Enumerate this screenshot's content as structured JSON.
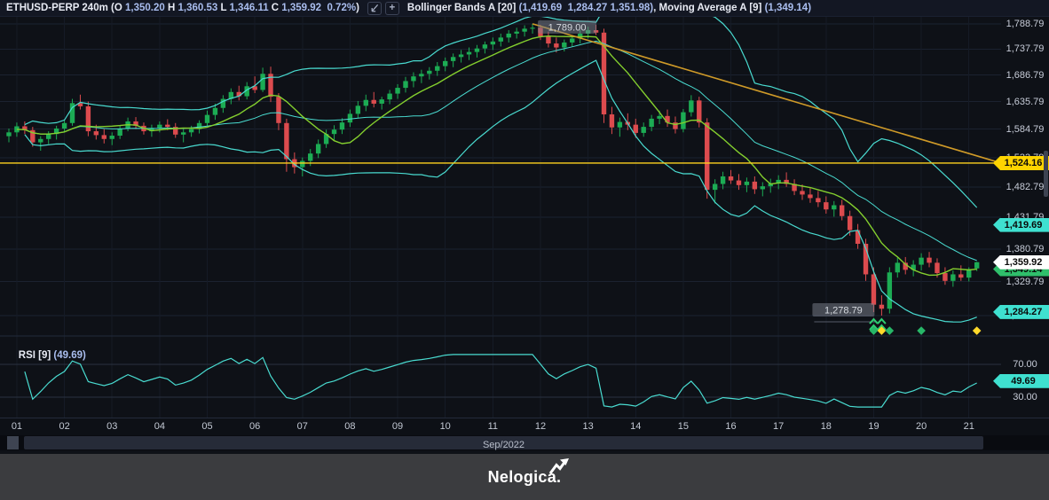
{
  "title_bar": {
    "segments_left": [
      {
        "text": "ETHUSD-PERP 240m ",
        "style": "label"
      },
      {
        "text": "(O ",
        "style": "label"
      },
      {
        "text": "1,350.20 ",
        "style": "value"
      },
      {
        "text": "H ",
        "style": "label"
      },
      {
        "text": "1,360.53 ",
        "style": "value"
      },
      {
        "text": "L ",
        "style": "label"
      },
      {
        "text": "1,346.11 ",
        "style": "value"
      },
      {
        "text": "C ",
        "style": "label"
      },
      {
        "text": "1,359.92  0.72%",
        "style": "value"
      },
      {
        "text": ")",
        "style": "label"
      }
    ],
    "segments_right": [
      {
        "text": "Bollinger Bands A [20] ",
        "style": "label"
      },
      {
        "text": "(1,419.69  1,284.27 1,351.98)",
        "style": "value"
      },
      {
        "text": ", ",
        "style": "label"
      },
      {
        "text": "Moving Average A [9] ",
        "style": "label"
      },
      {
        "text": "(1,349.14)",
        "style": "value"
      }
    ],
    "icons": {
      "scale_tool": "diagonal-arrow",
      "add_tool": "+"
    }
  },
  "price_axis": {
    "tick_labels": [
      "1,788.79",
      "1,737.79",
      "1,686.79",
      "1,635.79",
      "1,584.79",
      "1,533.79",
      "1,482.79",
      "1,431.79",
      "1,380.79",
      "1,329.79",
      "1,278.79"
    ],
    "tick_values": [
      1788.79,
      1737.79,
      1686.79,
      1635.79,
      1584.79,
      1533.79,
      1482.79,
      1431.79,
      1380.79,
      1329.79,
      1278.79
    ],
    "badges": [
      {
        "label": "1,524.16",
        "price": 1524.16,
        "bg": "#ffd400"
      },
      {
        "label": "1,419.69",
        "price": 1419.69,
        "bg": "#3fe0d0"
      },
      {
        "label": "1,349.14",
        "price": 1349.14,
        "bg": "#2fbf6b"
      },
      {
        "label": "1,359.92",
        "price": 1359.92,
        "bg": "#ffffff"
      },
      {
        "label": "1,284.27",
        "price": 1284.27,
        "bg": "#3fe0d0"
      }
    ]
  },
  "rsi": {
    "label": "RSI [9] ",
    "value_label": "(49.69)",
    "value": 49.69,
    "levels": [
      70,
      30
    ],
    "level_labels": [
      "70.00",
      "30.00"
    ],
    "badge": {
      "label": "49.69",
      "bg": "#3fe0d0"
    }
  },
  "time_axis": {
    "days": [
      "01",
      "02",
      "03",
      "04",
      "05",
      "06",
      "07",
      "08",
      "09",
      "10",
      "11",
      "12",
      "13",
      "14",
      "15",
      "16",
      "17",
      "18",
      "19",
      "20",
      "21"
    ],
    "period_label": "Sep/2022"
  },
  "footer": {
    "brand": "Nelogica."
  },
  "chart_data": {
    "type": "candlestick",
    "symbol": "ETHUSD-PERP",
    "timeframe": "240m",
    "month_label": "Sep/2022",
    "candles_per_day": 6,
    "scale": "logarithmic",
    "ylim": [
      1260,
      1800
    ],
    "grid": true,
    "candles": [
      [
        1572,
        1586,
        1561,
        1579
      ],
      [
        1579,
        1597,
        1571,
        1590
      ],
      [
        1590,
        1599,
        1576,
        1583
      ],
      [
        1583,
        1589,
        1553,
        1561
      ],
      [
        1561,
        1572,
        1546,
        1567
      ],
      [
        1567,
        1581,
        1558,
        1576
      ],
      [
        1576,
        1591,
        1566,
        1586
      ],
      [
        1586,
        1602,
        1579,
        1596
      ],
      [
        1596,
        1641,
        1591,
        1633
      ],
      [
        1633,
        1649,
        1621,
        1627
      ],
      [
        1627,
        1636,
        1572,
        1581
      ],
      [
        1581,
        1593,
        1566,
        1574
      ],
      [
        1574,
        1585,
        1559,
        1567
      ],
      [
        1567,
        1579,
        1556,
        1573
      ],
      [
        1573,
        1591,
        1567,
        1586
      ],
      [
        1586,
        1606,
        1581,
        1599
      ],
      [
        1599,
        1607,
        1585,
        1591
      ],
      [
        1591,
        1597,
        1575,
        1581
      ],
      [
        1581,
        1593,
        1571,
        1587
      ],
      [
        1587,
        1599,
        1579,
        1593
      ],
      [
        1593,
        1603,
        1583,
        1589
      ],
      [
        1589,
        1596,
        1569,
        1575
      ],
      [
        1575,
        1585,
        1561,
        1579
      ],
      [
        1579,
        1591,
        1571,
        1585
      ],
      [
        1585,
        1601,
        1577,
        1596
      ],
      [
        1596,
        1619,
        1591,
        1611
      ],
      [
        1611,
        1632,
        1602,
        1624
      ],
      [
        1624,
        1648,
        1615,
        1641
      ],
      [
        1641,
        1661,
        1631,
        1654
      ],
      [
        1654,
        1666,
        1638,
        1646
      ],
      [
        1646,
        1673,
        1640,
        1665
      ],
      [
        1665,
        1684,
        1652,
        1658
      ],
      [
        1658,
        1701,
        1654,
        1689
      ],
      [
        1689,
        1703,
        1635,
        1645
      ],
      [
        1645,
        1652,
        1583,
        1596
      ],
      [
        1596,
        1604,
        1509,
        1531
      ],
      [
        1531,
        1543,
        1506,
        1517
      ],
      [
        1517,
        1534,
        1501,
        1528
      ],
      [
        1528,
        1549,
        1519,
        1541
      ],
      [
        1541,
        1566,
        1533,
        1558
      ],
      [
        1558,
        1584,
        1551,
        1576
      ],
      [
        1576,
        1592,
        1565,
        1584
      ],
      [
        1584,
        1605,
        1576,
        1597
      ],
      [
        1597,
        1621,
        1589,
        1613
      ],
      [
        1613,
        1637,
        1605,
        1628
      ],
      [
        1628,
        1649,
        1618,
        1639
      ],
      [
        1639,
        1654,
        1625,
        1632
      ],
      [
        1632,
        1645,
        1621,
        1640
      ],
      [
        1640,
        1658,
        1631,
        1651
      ],
      [
        1651,
        1669,
        1641,
        1662
      ],
      [
        1662,
        1683,
        1653,
        1675
      ],
      [
        1675,
        1692,
        1663,
        1684
      ],
      [
        1684,
        1697,
        1671,
        1689
      ],
      [
        1689,
        1702,
        1678,
        1695
      ],
      [
        1695,
        1712,
        1685,
        1704
      ],
      [
        1704,
        1721,
        1694,
        1714
      ],
      [
        1714,
        1729,
        1702,
        1722
      ],
      [
        1722,
        1736,
        1711,
        1727
      ],
      [
        1727,
        1741,
        1716,
        1732
      ],
      [
        1732,
        1746,
        1721,
        1739
      ],
      [
        1739,
        1753,
        1729,
        1747
      ],
      [
        1747,
        1761,
        1736,
        1753
      ],
      [
        1753,
        1769,
        1743,
        1761
      ],
      [
        1761,
        1776,
        1751,
        1769
      ],
      [
        1769,
        1781,
        1759,
        1773
      ],
      [
        1773,
        1786,
        1763,
        1779
      ],
      [
        1779,
        1789,
        1769,
        1781
      ],
      [
        1781,
        1787,
        1756,
        1763
      ],
      [
        1763,
        1773,
        1741,
        1749
      ],
      [
        1749,
        1761,
        1731,
        1741
      ],
      [
        1741,
        1757,
        1733,
        1751
      ],
      [
        1751,
        1766,
        1743,
        1759
      ],
      [
        1759,
        1776,
        1749,
        1769
      ],
      [
        1769,
        1783,
        1759,
        1776
      ],
      [
        1776,
        1787,
        1766,
        1771
      ],
      [
        1771,
        1779,
        1596,
        1612
      ],
      [
        1612,
        1626,
        1576,
        1588
      ],
      [
        1588,
        1606,
        1571,
        1598
      ],
      [
        1598,
        1614,
        1583,
        1593
      ],
      [
        1593,
        1604,
        1569,
        1578
      ],
      [
        1578,
        1597,
        1571,
        1589
      ],
      [
        1589,
        1611,
        1581,
        1604
      ],
      [
        1604,
        1619,
        1594,
        1609
      ],
      [
        1609,
        1621,
        1589,
        1597
      ],
      [
        1597,
        1608,
        1577,
        1585
      ],
      [
        1585,
        1622,
        1579,
        1616
      ],
      [
        1616,
        1648,
        1608,
        1638
      ],
      [
        1638,
        1645,
        1588,
        1597
      ],
      [
        1597,
        1605,
        1463,
        1478
      ],
      [
        1478,
        1496,
        1455,
        1488
      ],
      [
        1488,
        1509,
        1479,
        1501
      ],
      [
        1501,
        1512,
        1488,
        1494
      ],
      [
        1494,
        1505,
        1478,
        1486
      ],
      [
        1486,
        1499,
        1474,
        1492
      ],
      [
        1492,
        1501,
        1471,
        1479
      ],
      [
        1479,
        1491,
        1467,
        1484
      ],
      [
        1484,
        1497,
        1473,
        1489
      ],
      [
        1489,
        1503,
        1479,
        1495
      ],
      [
        1495,
        1508,
        1483,
        1488
      ],
      [
        1488,
        1496,
        1469,
        1476
      ],
      [
        1476,
        1487,
        1461,
        1470
      ],
      [
        1470,
        1481,
        1456,
        1464
      ],
      [
        1464,
        1476,
        1449,
        1457
      ],
      [
        1457,
        1467,
        1438,
        1445
      ],
      [
        1445,
        1459,
        1433,
        1452
      ],
      [
        1452,
        1461,
        1427,
        1434
      ],
      [
        1434,
        1443,
        1402,
        1411
      ],
      [
        1411,
        1421,
        1381,
        1389
      ],
      [
        1389,
        1397,
        1331,
        1341
      ],
      [
        1341,
        1352,
        1284,
        1295
      ],
      [
        1295,
        1309,
        1278.8,
        1289
      ],
      [
        1289,
        1352,
        1282,
        1344
      ],
      [
        1344,
        1367,
        1336,
        1359
      ],
      [
        1359,
        1368,
        1341,
        1348
      ],
      [
        1348,
        1363,
        1338,
        1356
      ],
      [
        1356,
        1374,
        1347,
        1367
      ],
      [
        1367,
        1376,
        1352,
        1359
      ],
      [
        1359,
        1366,
        1336,
        1343
      ],
      [
        1343,
        1352,
        1325,
        1331
      ],
      [
        1331,
        1347,
        1322,
        1341
      ],
      [
        1341,
        1355,
        1331,
        1336
      ],
      [
        1336,
        1352,
        1330,
        1349
      ],
      [
        1350.2,
        1360.53,
        1346.11,
        1359.92
      ]
    ],
    "last_candle": {
      "open": "1,350.20",
      "high": "1,360.53",
      "low": "1,346.11",
      "close": "1,359.92",
      "change_pct": "0.72%"
    },
    "indicators": {
      "bollinger": {
        "name": "Bollinger Bands A",
        "period": 20,
        "stdev_mult": 2,
        "upper": 1419.69,
        "lower": 1284.27,
        "middle": 1351.98,
        "color": "#49dbd0"
      },
      "moving_average": {
        "name": "Moving Average A",
        "period": 9,
        "value": 1349.14,
        "color": "#84cf2e"
      },
      "rsi": {
        "name": "RSI",
        "period": 9,
        "value": 49.69,
        "levels": [
          70,
          30
        ],
        "color": "#49dbd0"
      }
    },
    "drawings": {
      "trendline": {
        "from_candle": 66,
        "from_price": 1789,
        "to_price": 1524.16,
        "color": "#cf9a28"
      },
      "horizontal_line": {
        "price": 1524.16,
        "label": "1,524.16",
        "color": "#ffd21e"
      }
    },
    "annotations": {
      "high": {
        "text": "1,789.00",
        "candle": 66,
        "price": 1789
      },
      "low": {
        "text": "1,278.79",
        "candle": 110,
        "price": 1278.8
      }
    },
    "signals": {
      "chevrons": [
        {
          "candle": 109,
          "color": "#2ecc71"
        },
        {
          "candle": 110,
          "color": "#2ecc71"
        }
      ],
      "diamonds": [
        {
          "candle": 109,
          "color": "#27b768"
        },
        {
          "candle": 110,
          "color": "#ffd92a"
        },
        {
          "candle": 111,
          "color": "#27b768"
        },
        {
          "candle": 115,
          "color": "#27b768"
        },
        {
          "candle": 122,
          "color": "#ffd92a"
        }
      ]
    },
    "colors": {
      "up": "#1cac54",
      "down": "#dc4b4e",
      "grid": "#1b2230",
      "vgrid": "#151b26"
    }
  }
}
